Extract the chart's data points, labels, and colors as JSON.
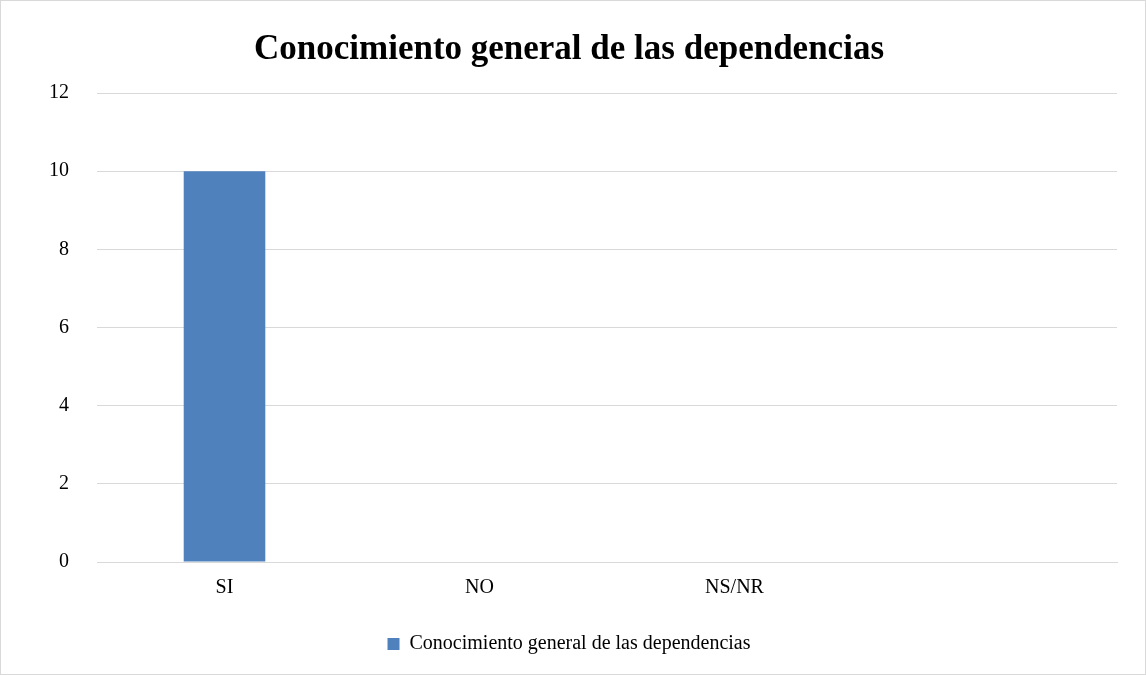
{
  "chart_data": {
    "type": "bar",
    "title": "Conocimiento general de las dependencias",
    "categories": [
      "SI",
      "NO",
      "NS/NR",
      null
    ],
    "series": [
      {
        "name": "Conocimiento general de las dependencias",
        "color": "#4f81bd",
        "values": [
          10,
          0,
          0,
          null
        ]
      }
    ],
    "ylim": [
      0,
      12
    ],
    "yticks": [
      0,
      2,
      4,
      6,
      8,
      10,
      12
    ],
    "grid": "y",
    "legend": "bottom"
  }
}
